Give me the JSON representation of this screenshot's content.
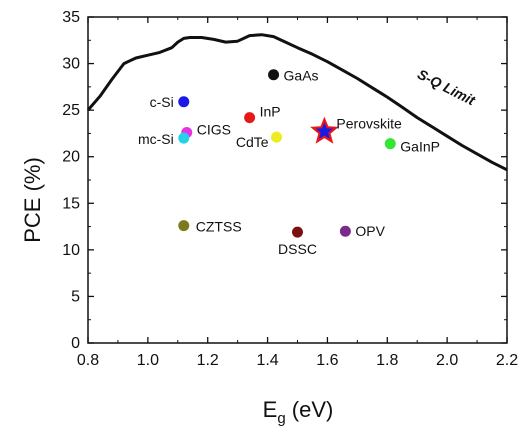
{
  "chart_data": {
    "type": "scatter",
    "title": "",
    "xlabel_main": "E",
    "xlabel_sub": "g",
    "xlabel_unit": " (eV)",
    "ylabel": "PCE (%)",
    "xlim": [
      0.8,
      2.2
    ],
    "ylim": [
      0,
      35
    ],
    "x_ticks": [
      0.8,
      1.0,
      1.2,
      1.4,
      1.6,
      1.8,
      2.0,
      2.2
    ],
    "x_tick_labels": [
      "0.8",
      "1.0",
      "1.2",
      "1.4",
      "1.6",
      "1.8",
      "2.0",
      "2.2"
    ],
    "y_ticks": [
      0,
      5,
      10,
      15,
      20,
      25,
      30,
      35
    ],
    "y_tick_labels": [
      "0",
      "5",
      "10",
      "15",
      "20",
      "25",
      "30",
      "35"
    ],
    "grid": false,
    "limit_curve": {
      "name": "S-Q Limit",
      "x": [
        0.8,
        0.84,
        0.88,
        0.92,
        0.96,
        1.0,
        1.04,
        1.08,
        1.1,
        1.12,
        1.14,
        1.18,
        1.22,
        1.26,
        1.3,
        1.34,
        1.38,
        1.42,
        1.46,
        1.5,
        1.55,
        1.6,
        1.65,
        1.7,
        1.75,
        1.8,
        1.85,
        1.9,
        1.95,
        2.0,
        2.05,
        2.1,
        2.15,
        2.2
      ],
      "y": [
        25.0,
        26.5,
        28.3,
        30.0,
        30.6,
        30.9,
        31.2,
        31.7,
        32.3,
        32.7,
        32.8,
        32.8,
        32.6,
        32.3,
        32.4,
        33.0,
        33.1,
        32.9,
        32.3,
        31.7,
        31.0,
        30.2,
        29.3,
        28.4,
        27.4,
        26.4,
        25.3,
        24.2,
        23.2,
        22.2,
        21.2,
        20.3,
        19.4,
        18.6
      ]
    },
    "points": [
      {
        "label": "GaAs",
        "x": 1.42,
        "y": 28.8,
        "color": "#111111"
      },
      {
        "label": "c-Si",
        "x": 1.12,
        "y": 25.9,
        "color": "#1a1ae6"
      },
      {
        "label": "InP",
        "x": 1.34,
        "y": 24.2,
        "color": "#e61919"
      },
      {
        "label": "CIGS",
        "x": 1.13,
        "y": 22.6,
        "color": "#e633e6"
      },
      {
        "label": "mc-Si",
        "x": 1.12,
        "y": 22.0,
        "color": "#22d4e6"
      },
      {
        "label": "CdTe",
        "x": 1.43,
        "y": 22.1,
        "color": "#ecec22"
      },
      {
        "label": "GaInP",
        "x": 1.81,
        "y": 21.4,
        "color": "#33e633"
      },
      {
        "label": "CZTSS",
        "x": 1.12,
        "y": 12.6,
        "color": "#7d7a1a"
      },
      {
        "label": "DSSC",
        "x": 1.5,
        "y": 11.9,
        "color": "#7a1010"
      },
      {
        "label": "OPV",
        "x": 1.66,
        "y": 12.0,
        "color": "#7a2a8c"
      }
    ],
    "highlight_point": {
      "label": "Perovskite",
      "x": 1.59,
      "y": 22.7,
      "fill": "#1a1ae6",
      "stroke": "#e61919"
    }
  }
}
